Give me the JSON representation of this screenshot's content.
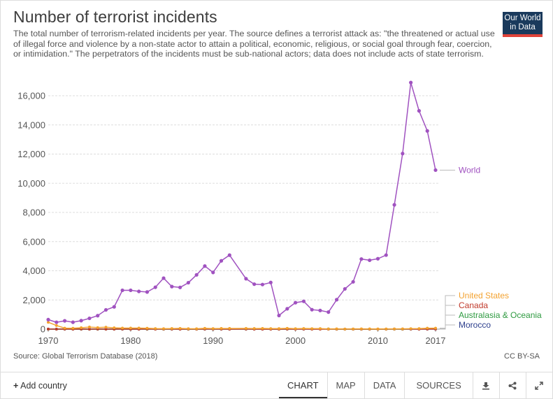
{
  "title": "Number of terrorist incidents",
  "subtitle": "The total number of terrorism-related incidents per year. The source defines a terrorist attack as: \"the threatened or actual use of illegal force and violence by a non-state actor to attain a political, economic, religious, or social goal through fear, coercion, or intimidation.\" The perpetrators of the incidents must be sub-national actors; data does not include acts of state terrorism.",
  "logo": {
    "line1": "Our World",
    "line2": "in Data"
  },
  "source": "Source: Global Terrorism Database (2018)",
  "license": "CC BY-SA",
  "footer": {
    "add_country": "Add country",
    "tabs": [
      "CHART",
      "MAP",
      "DATA",
      "SOURCES"
    ],
    "active_tab": "CHART",
    "icons": [
      "download-icon",
      "share-icon",
      "expand-icon"
    ]
  },
  "colors": {
    "World": "#a052c0",
    "United States": "#f3a230",
    "Canada": "#c0392b",
    "Australasia & Oceania": "#2e9a40",
    "Morocco": "#2c3e8c",
    "grid": "#dddddd",
    "axis": "#555555"
  },
  "chart_data": {
    "type": "line",
    "title": "Number of terrorist incidents",
    "xlabel": "",
    "ylabel": "",
    "xlim": [
      1970,
      2017
    ],
    "ylim": [
      0,
      16000
    ],
    "xticks": [
      1970,
      1980,
      1990,
      2000,
      2010,
      2017
    ],
    "yticks": [
      0,
      2000,
      4000,
      6000,
      8000,
      10000,
      12000,
      14000,
      16000
    ],
    "ytick_labels": [
      "0",
      "2,000",
      "4,000",
      "6,000",
      "8,000",
      "10,000",
      "12,000",
      "14,000",
      "16,000"
    ],
    "grid": true,
    "legend": "labels at right end of lines",
    "x": [
      1970,
      1971,
      1972,
      1973,
      1974,
      1975,
      1976,
      1977,
      1978,
      1979,
      1980,
      1981,
      1982,
      1983,
      1984,
      1985,
      1986,
      1987,
      1988,
      1989,
      1990,
      1991,
      1992,
      1994,
      1995,
      1996,
      1997,
      1998,
      1999,
      2000,
      2001,
      2002,
      2003,
      2004,
      2005,
      2006,
      2007,
      2008,
      2009,
      2010,
      2011,
      2012,
      2013,
      2014,
      2015,
      2016,
      2017
    ],
    "series": [
      {
        "name": "World",
        "values": [
          651,
          471,
          568,
          473,
          581,
          740,
          923,
          1319,
          1526,
          2661,
          2662,
          2586,
          2544,
          2870,
          3495,
          2915,
          2860,
          3183,
          3720,
          4324,
          3887,
          4683,
          5071,
          3456,
          3081,
          3058,
          3197,
          934,
          1395,
          1814,
          1906,
          1333,
          1278,
          1166,
          2017,
          2758,
          3242,
          4805,
          4721,
          4826,
          5076,
          8522,
          12036,
          16903,
          14965,
          13587,
          10900
        ]
      },
      {
        "name": "United States",
        "values": [
          468,
          247,
          66,
          58,
          94,
          141,
          104,
          130,
          92,
          70,
          73,
          74,
          60,
          34,
          31,
          40,
          50,
          27,
          24,
          53,
          35,
          45,
          45,
          46,
          40,
          47,
          38,
          33,
          51,
          27,
          41,
          32,
          33,
          10,
          20,
          5,
          13,
          19,
          15,
          12,
          10,
          14,
          20,
          29,
          38,
          64,
          65
        ]
      },
      {
        "name": "Canada",
        "values": [
          5,
          1,
          3,
          2,
          3,
          2,
          6,
          0,
          0,
          5,
          2,
          1,
          14,
          1,
          7,
          5,
          1,
          4,
          1,
          5,
          6,
          5,
          1,
          3,
          2,
          1,
          0,
          1,
          3,
          1,
          4,
          1,
          1,
          0,
          2,
          2,
          0,
          0,
          1,
          1,
          1,
          7,
          6,
          5,
          2,
          5,
          7
        ]
      },
      {
        "name": "Australasia & Oceania",
        "values": [
          1,
          1,
          8,
          1,
          1,
          0,
          0,
          0,
          0,
          7,
          1,
          7,
          2,
          9,
          2,
          4,
          4,
          1,
          0,
          5,
          3,
          7,
          5,
          6,
          4,
          5,
          5,
          1,
          4,
          10,
          13,
          14,
          13,
          12,
          1,
          1,
          1,
          2,
          1,
          1,
          2,
          5,
          2,
          9,
          16,
          20,
          21
        ]
      },
      {
        "name": "Morocco",
        "values": [
          0,
          0,
          0,
          0,
          0,
          0,
          0,
          0,
          0,
          0,
          0,
          0,
          0,
          0,
          0,
          0,
          0,
          0,
          0,
          0,
          1,
          0,
          0,
          0,
          0,
          0,
          0,
          0,
          0,
          0,
          0,
          0,
          6,
          0,
          0,
          0,
          2,
          0,
          0,
          0,
          2,
          0,
          0,
          0,
          0,
          0,
          0
        ]
      }
    ]
  }
}
